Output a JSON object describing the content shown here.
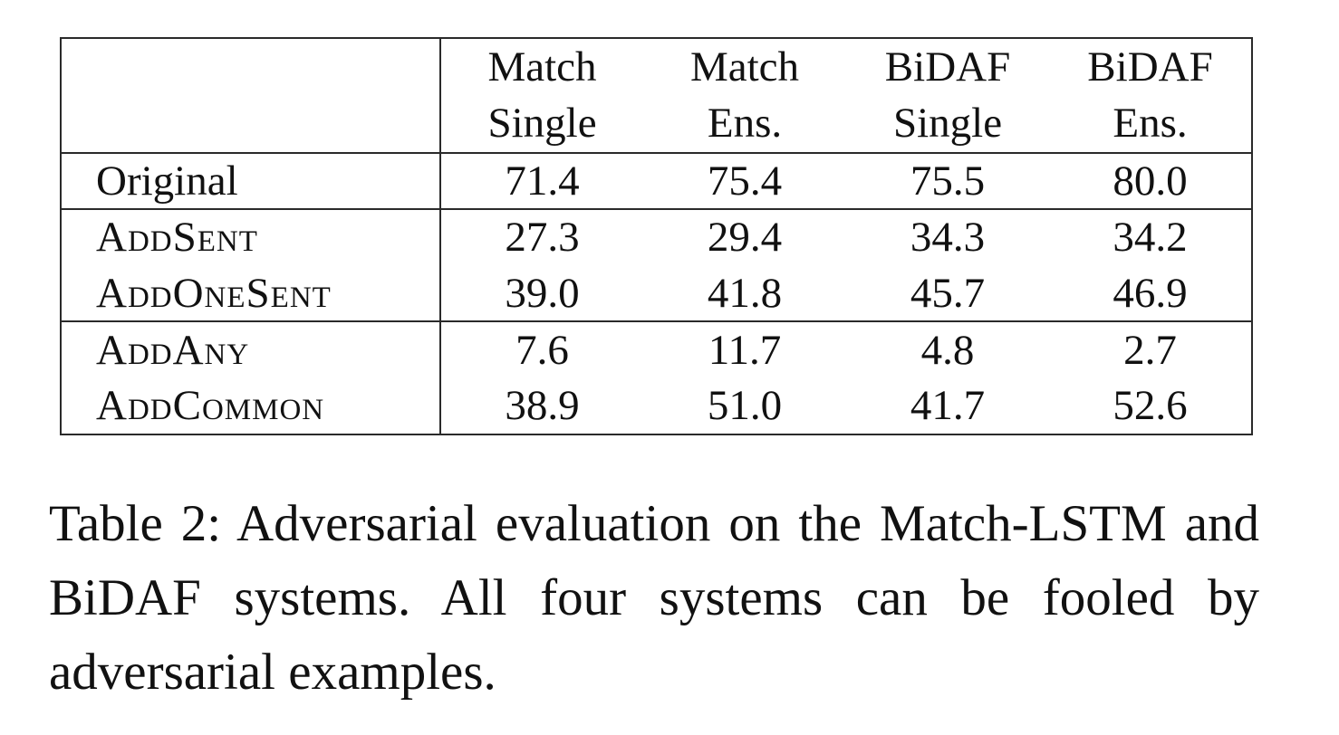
{
  "table": {
    "columns": [
      {
        "line1": "Match",
        "line2": "Single"
      },
      {
        "line1": "Match",
        "line2": "Ens."
      },
      {
        "line1": "BiDAF",
        "line2": "Single"
      },
      {
        "line1": "BiDAF",
        "line2": "Ens."
      }
    ],
    "rows": [
      {
        "label": "Original",
        "values": [
          "71.4",
          "75.4",
          "75.5",
          "80.0"
        ]
      },
      {
        "label": "AddSent",
        "values": [
          "27.3",
          "29.4",
          "34.3",
          "34.2"
        ]
      },
      {
        "label": "AddOneSent",
        "values": [
          "39.0",
          "41.8",
          "45.7",
          "46.9"
        ]
      },
      {
        "label": "AddAny",
        "values": [
          "7.6",
          "11.7",
          "4.8",
          "2.7"
        ]
      },
      {
        "label": "AddCommon",
        "values": [
          "38.9",
          "51.0",
          "41.7",
          "52.6"
        ]
      }
    ]
  },
  "caption": "Table 2:  Adversarial evaluation on the Match-LSTM and BiDAF systems. All four systems can be fooled by adversarial examples."
}
